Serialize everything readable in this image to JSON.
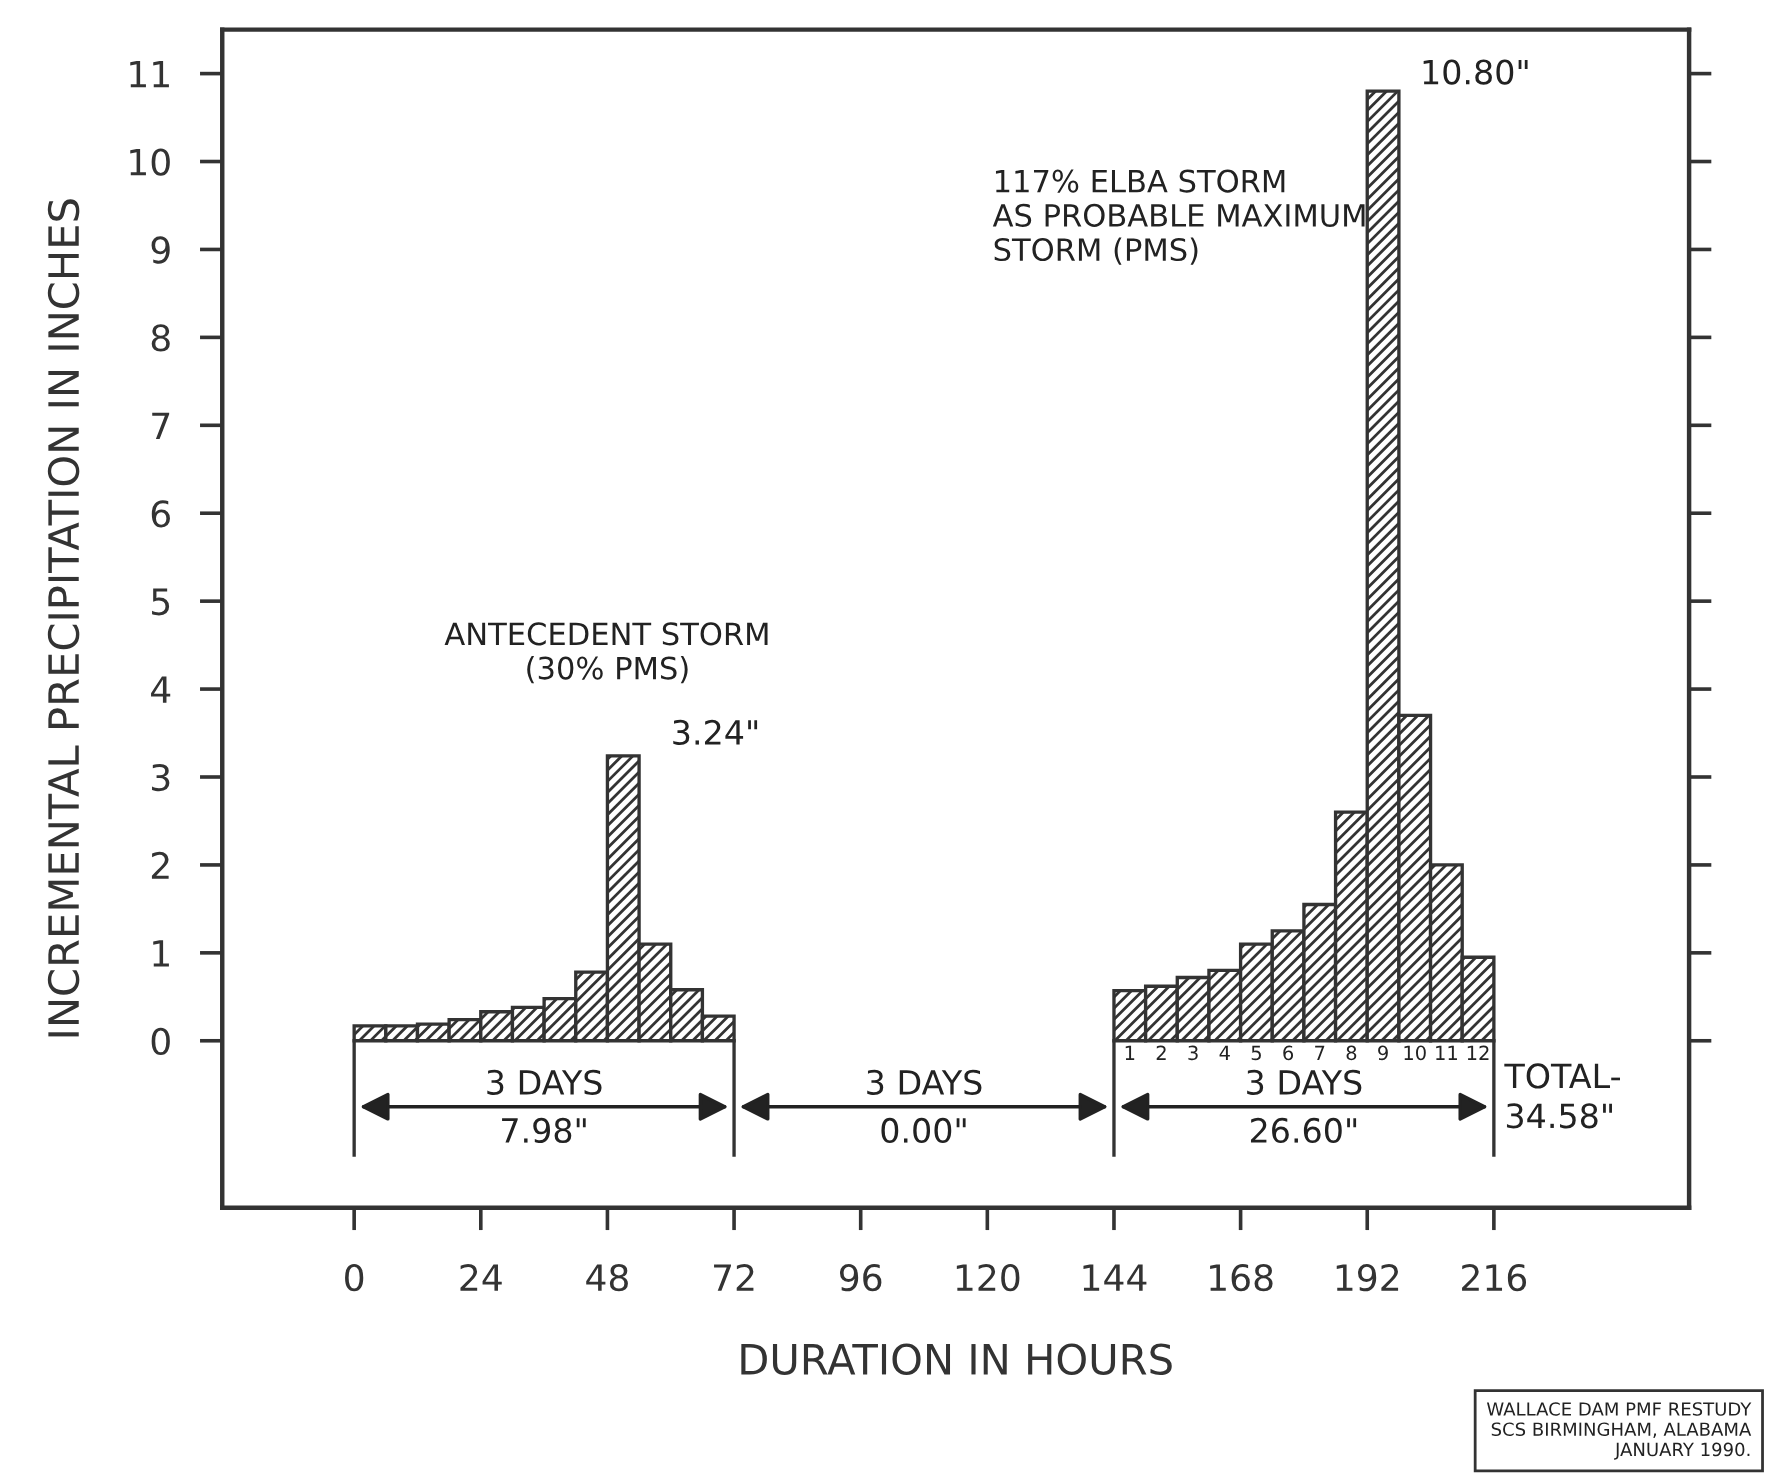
{
  "chart_data": {
    "type": "histogram",
    "xlabel": "DURATION IN HOURS",
    "ylabel": "INCREMENTAL PRECIPITATION IN INCHES",
    "bins": [
      0,
      6,
      12,
      18,
      24,
      30,
      36,
      42,
      48,
      54,
      60,
      66,
      72,
      78,
      84,
      90,
      96,
      102,
      108,
      114,
      120,
      126,
      132,
      138,
      144,
      150,
      156,
      162,
      168,
      174,
      180,
      186,
      192,
      198,
      204,
      210,
      216
    ],
    "values": [
      0.17,
      0.17,
      0.19,
      0.24,
      0.33,
      0.38,
      0.48,
      0.78,
      3.24,
      1.1,
      0.58,
      0.28,
      null,
      null,
      null,
      null,
      null,
      null,
      null,
      null,
      null,
      null,
      null,
      null,
      0.57,
      0.62,
      0.72,
      0.8,
      1.1,
      1.25,
      1.55,
      2.6,
      10.8,
      3.7,
      2.0,
      0.95
    ],
    "color": "#333333",
    "xlim": [
      -25,
      253
    ],
    "ylim": [
      -1.9,
      11.5
    ],
    "xticks": [
      0,
      24,
      48,
      72,
      96,
      120,
      144,
      168,
      192,
      216
    ],
    "yticks": [
      0,
      1,
      2,
      3,
      4,
      5,
      6,
      7,
      8,
      9,
      10,
      11
    ],
    "grid": false,
    "annotations": [
      {
        "text": "ANTECEDENT STORM\n(30% PMS)",
        "x": 51,
        "y": 3.24
      },
      {
        "text": "3.24\"",
        "x": 54,
        "y": 3.24
      },
      {
        "text": "117% ELBA STORM\nAS PROBABLE MAXIMUM\nSTORM (PMS)",
        "x": 195,
        "y": 10.8
      },
      {
        "text": "10.80\"",
        "x": 198,
        "y": 10.8
      },
      {
        "text": "3 DAYS",
        "x": 36,
        "y": 0
      },
      {
        "text": "7.98\"",
        "x": 36,
        "y": 0
      },
      "3 DAYS",
      "0.00\"",
      {
        "text": "3 DAYS",
        "x": 180,
        "y": 0
      },
      {
        "text": "26.60\"",
        "x": 180,
        "y": 0
      },
      {
        "text": "TOTAL-\n34.58\"",
        "x": 216,
        "y": 0
      },
      {
        "text": "1",
        "x": 147,
        "y": 0
      },
      {
        "text": "2",
        "x": 153,
        "y": 0
      },
      {
        "text": "3",
        "x": 159,
        "y": 0
      },
      {
        "text": "4",
        "x": 165,
        "y": 0
      },
      {
        "text": "5",
        "x": 171,
        "y": 0
      },
      {
        "text": "6",
        "x": 177,
        "y": 0
      },
      {
        "text": "7",
        "x": 183,
        "y": 0
      },
      {
        "text": "8",
        "x": 189,
        "y": 0
      },
      {
        "text": "9",
        "x": 195,
        "y": 0
      },
      {
        "text": "10",
        "x": 201,
        "y": 0
      },
      {
        "text": "11",
        "x": 207,
        "y": 0
      },
      {
        "text": "12",
        "x": 213,
        "y": 0
      },
      "WALLACE DAM PMF RESTUDY\nSCS BIRMINGHAM, ALABAMA\nJANUARY 1990."
    ]
  }
}
